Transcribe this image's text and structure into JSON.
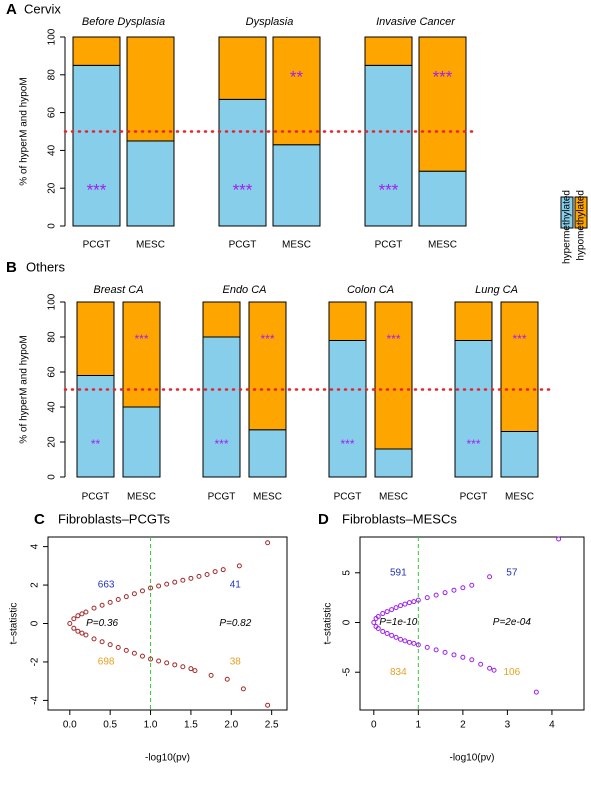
{
  "chart_data": [
    {
      "type": "bar",
      "stacked": true,
      "panel_label": "A",
      "title": "Cervix",
      "groups": [
        "Before Dysplasia",
        "Dysplasia",
        "Invasive Cancer"
      ],
      "categories": [
        "PCGT",
        "MESC",
        "PCGT",
        "MESC",
        "PCGT",
        "MESC"
      ],
      "series": [
        {
          "name": "hypermethylated",
          "color": "#87ceeb",
          "values": [
            85,
            45,
            67,
            43,
            85,
            29
          ]
        },
        {
          "name": "hypomethylated",
          "color": "#ffa500",
          "values": [
            15,
            55,
            33,
            57,
            15,
            71
          ]
        }
      ],
      "stars": [
        "***",
        null,
        "***",
        "**",
        "***",
        "***"
      ],
      "star_color": "#a020f0",
      "ylabel": "% of hyperM and hypoM",
      "ylim": [
        0,
        100
      ],
      "yticks": [
        0,
        20,
        40,
        60,
        80,
        100
      ],
      "reference_line": 50,
      "reference_color": "#e8202a",
      "legend": true
    },
    {
      "type": "bar",
      "stacked": true,
      "panel_label": "B",
      "title": "Others",
      "groups": [
        "Breast CA",
        "Endo CA",
        "Colon CA",
        "Lung CA"
      ],
      "categories": [
        "PCGT",
        "MESC",
        "PCGT",
        "MESC",
        "PCGT",
        "MESC",
        "PCGT",
        "MESC"
      ],
      "series": [
        {
          "color": "#87ceeb",
          "values": [
            58,
            40,
            80,
            27,
            78,
            16,
            78,
            26
          ]
        },
        {
          "color": "#ffa500",
          "values": [
            42,
            60,
            20,
            73,
            22,
            84,
            22,
            74
          ]
        }
      ],
      "stars": [
        "**",
        "***",
        "***",
        "***",
        "***",
        "***",
        "***",
        "***"
      ],
      "star_color": "#a020f0",
      "ylabel": "% of hyperM and hypoM",
      "ylim": [
        0,
        100
      ],
      "yticks": [
        0,
        20,
        40,
        60,
        80,
        100
      ],
      "reference_line": 50,
      "reference_color": "#e8202a",
      "legend": false
    },
    {
      "type": "scatter",
      "panel_label": "C",
      "title": "Fibroblasts–PCGTs",
      "xlabel": "-log10(pv)",
      "ylabel": "t–statistic",
      "xlim": [
        -0.27,
        2.69
      ],
      "ylim": [
        -4.5,
        4.5
      ],
      "xticks": [
        {
          "value": 0,
          "label": "0.0"
        },
        0.5,
        {
          "value": 1,
          "label": "1.0"
        },
        1.5,
        {
          "value": 2,
          "label": "2.0"
        },
        2.5
      ],
      "yticks": [
        -4,
        -2,
        0,
        2,
        4
      ],
      "vline": 1,
      "vline_color": "#33cc33",
      "series": [
        {
          "color": "#a52a2a",
          "x": [
            0.0,
            0.05,
            0.1,
            0.15,
            0.2,
            0.3,
            0.4,
            0.5,
            0.6,
            0.7,
            0.8,
            0.9,
            1.0,
            1.1,
            1.2,
            1.3,
            1.4,
            1.5,
            1.6,
            1.7,
            1.8,
            1.9,
            2.1,
            2.45,
            0.05,
            0.1,
            0.15,
            0.2,
            0.3,
            0.4,
            0.5,
            0.6,
            0.7,
            0.8,
            0.9,
            1.0,
            1.1,
            1.2,
            1.3,
            1.4,
            1.5,
            1.55,
            1.75,
            1.95,
            2.15,
            2.45
          ],
          "y": [
            0.0,
            0.25,
            0.4,
            0.5,
            0.6,
            0.8,
            0.95,
            1.1,
            1.25,
            1.4,
            1.55,
            1.7,
            1.85,
            1.95,
            2.05,
            2.15,
            2.25,
            2.35,
            2.45,
            2.55,
            2.7,
            2.8,
            3.0,
            4.2,
            -0.25,
            -0.4,
            -0.5,
            -0.6,
            -0.8,
            -0.95,
            -1.1,
            -1.25,
            -1.4,
            -1.55,
            -1.7,
            -1.85,
            -1.95,
            -2.05,
            -2.15,
            -2.25,
            -2.35,
            -2.45,
            -2.7,
            -2.9,
            -3.4,
            -4.25
          ]
        }
      ],
      "annotations": [
        {
          "text": "663",
          "color": "#2233bb"
        },
        {
          "text": "41",
          "color": "#2233bb"
        },
        {
          "text": "P=0.36",
          "color": "#000000"
        },
        {
          "text": "P=0.82",
          "color": "#000000"
        },
        {
          "text": "698",
          "color": "#e6a020"
        },
        {
          "text": "38",
          "color": "#e6a020"
        }
      ]
    },
    {
      "type": "scatter",
      "panel_label": "D",
      "title": "Fibroblasts–MESCs",
      "xlabel": "-log10(pv)",
      "ylabel": "t–statistic",
      "xlim": [
        -0.31,
        4.72
      ],
      "ylim": [
        -8.8,
        8.6
      ],
      "xticks": [
        0,
        1,
        2,
        3,
        4
      ],
      "yticks": [
        -5,
        0,
        5
      ],
      "vline": 1,
      "vline_color": "#33cc33",
      "series": [
        {
          "color": "#a020f0",
          "x": [
            0.0,
            0.05,
            0.1,
            0.2,
            0.3,
            0.4,
            0.5,
            0.6,
            0.7,
            0.8,
            0.9,
            1.0,
            1.2,
            1.4,
            1.6,
            1.8,
            2.0,
            2.2,
            2.6,
            4.15,
            0.05,
            0.1,
            0.2,
            0.3,
            0.4,
            0.5,
            0.6,
            0.7,
            0.8,
            0.9,
            1.0,
            1.2,
            1.4,
            1.6,
            1.8,
            2.0,
            2.2,
            2.4,
            2.6,
            2.7,
            3.65
          ],
          "y": [
            0.0,
            0.4,
            0.6,
            0.9,
            1.1,
            1.3,
            1.5,
            1.7,
            1.85,
            2.0,
            2.1,
            2.25,
            2.5,
            2.75,
            3.0,
            3.25,
            3.5,
            3.75,
            4.6,
            8.4,
            -0.4,
            -0.6,
            -0.9,
            -1.1,
            -1.3,
            -1.5,
            -1.7,
            -1.85,
            -2.0,
            -2.1,
            -2.25,
            -2.5,
            -2.75,
            -3.0,
            -3.25,
            -3.5,
            -3.75,
            -4.2,
            -4.6,
            -4.8,
            -7.0
          ]
        }
      ],
      "annotations": [
        {
          "text": "591",
          "color": "#2233bb"
        },
        {
          "text": "57",
          "color": "#2233bb"
        },
        {
          "text": "P=1e-10",
          "color": "#000000"
        },
        {
          "text": "P=2e-04",
          "color": "#000000"
        },
        {
          "text": "834",
          "color": "#e6a020"
        },
        {
          "text": "106",
          "color": "#e6a020"
        }
      ]
    }
  ]
}
